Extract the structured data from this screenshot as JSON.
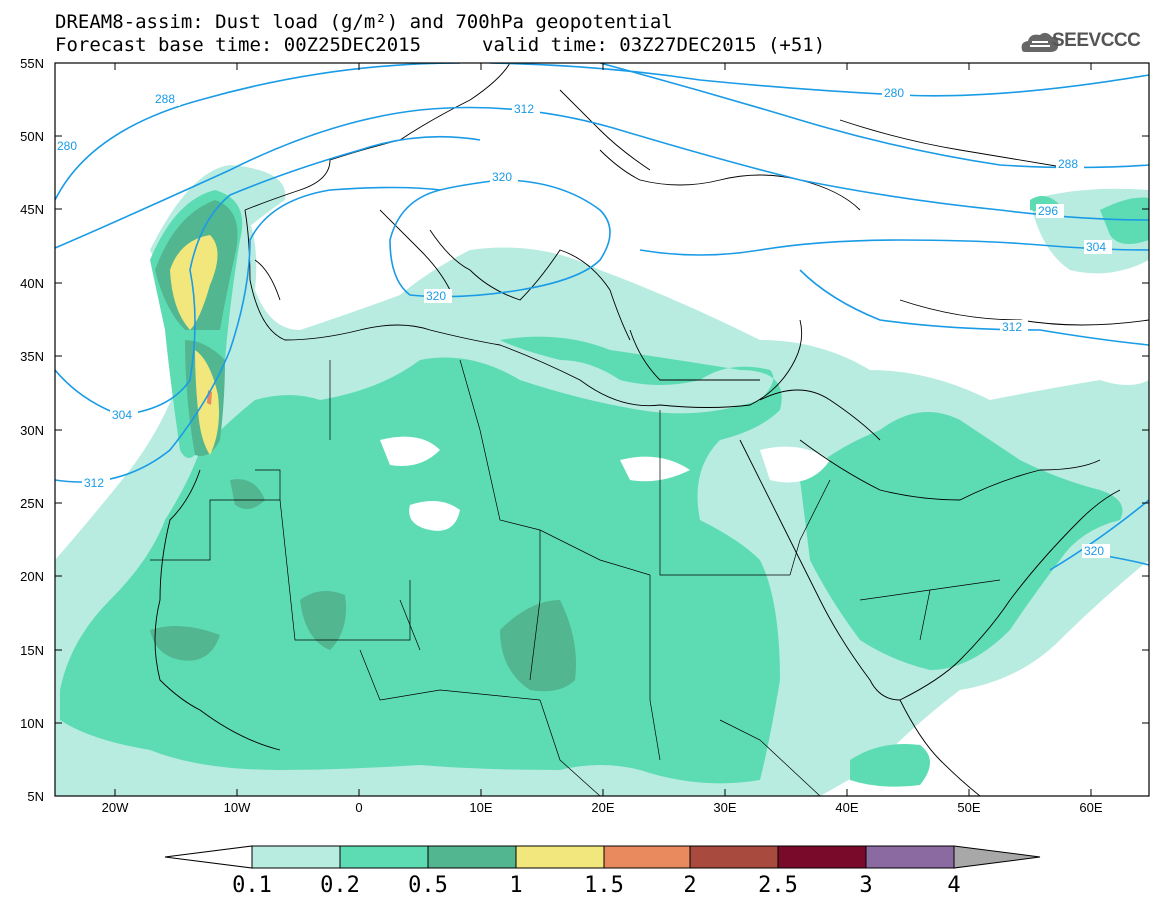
{
  "header": {
    "title_line1": "DREAM8-assim: Dust load (g/m²) and 700hPa geopotential",
    "title_line2": "Forecast base time: 00Z25DEC2015",
    "valid_time": "valid time: 03Z27DEC2015 (+51)",
    "logo_text": "SEEVCCC"
  },
  "axes": {
    "lat_labels": [
      "55N",
      "50N",
      "45N",
      "40N",
      "35N",
      "30N",
      "25N",
      "20N",
      "15N",
      "10N",
      "5N"
    ],
    "lon_labels": [
      "20W",
      "10W",
      "0",
      "10E",
      "20E",
      "30E",
      "40E",
      "50E",
      "60E"
    ]
  },
  "contours": {
    "color": "#1a9be6",
    "labels": [
      "288",
      "280",
      "312",
      "320",
      "280",
      "288",
      "296",
      "304",
      "320",
      "312",
      "304",
      "312",
      "320"
    ]
  },
  "colorbar": {
    "labels": [
      "0.1",
      "0.2",
      "0.5",
      "1",
      "1.5",
      "2",
      "2.5",
      "3",
      "4"
    ],
    "colors": [
      "#b8ece0",
      "#5ddcb4",
      "#52b690",
      "#f2e77c",
      "#e88a5e",
      "#a84a3e",
      "#7a0a2a",
      "#8a6aa0",
      "#a8a8a8"
    ]
  }
}
